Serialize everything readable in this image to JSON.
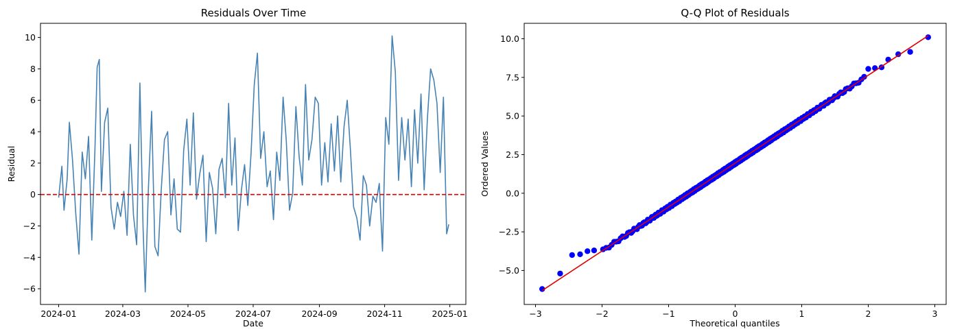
{
  "chart_data": [
    {
      "type": "line",
      "title": "Residuals Over Time",
      "xlabel": "Date",
      "ylabel": "Residual",
      "x_ticks": [
        "2024-01",
        "2024-03",
        "2024-05",
        "2024-07",
        "2024-09",
        "2024-11",
        "2025-01"
      ],
      "y_ticks": [
        "−6",
        "−4",
        "−2",
        "0",
        "2",
        "4",
        "6",
        "8",
        "10"
      ],
      "xlim": [
        "2023-12-15",
        "2025-01-16"
      ],
      "ylim": [
        -7,
        10.9
      ],
      "series": [
        {
          "color": "#4682b4",
          "x": [
            "2024-01-01",
            "2024-01-04",
            "2024-01-06",
            "2024-01-09",
            "2024-01-11",
            "2024-01-14",
            "2024-01-17",
            "2024-01-20",
            "2024-01-23",
            "2024-01-26",
            "2024-01-29",
            "2024-02-01",
            "2024-02-04",
            "2024-02-06",
            "2024-02-08",
            "2024-02-10",
            "2024-02-13",
            "2024-02-16",
            "2024-02-19",
            "2024-02-22",
            "2024-02-25",
            "2024-02-28",
            "2024-03-02",
            "2024-03-05",
            "2024-03-08",
            "2024-03-11",
            "2024-03-14",
            "2024-03-17",
            "2024-03-20",
            "2024-03-22",
            "2024-03-25",
            "2024-03-28",
            "2024-03-31",
            "2024-04-03",
            "2024-04-06",
            "2024-04-09",
            "2024-04-12",
            "2024-04-15",
            "2024-04-18",
            "2024-04-21",
            "2024-04-24",
            "2024-04-27",
            "2024-04-30",
            "2024-05-03",
            "2024-05-06",
            "2024-05-09",
            "2024-05-12",
            "2024-05-15",
            "2024-05-18",
            "2024-05-21",
            "2024-05-24",
            "2024-05-27",
            "2024-05-30",
            "2024-06-02",
            "2024-06-05",
            "2024-06-08",
            "2024-06-11",
            "2024-06-14",
            "2024-06-17",
            "2024-06-20",
            "2024-06-23",
            "2024-06-26",
            "2024-06-29",
            "2024-07-02",
            "2024-07-05",
            "2024-07-08",
            "2024-07-11",
            "2024-07-14",
            "2024-07-17",
            "2024-07-20",
            "2024-07-23",
            "2024-07-26",
            "2024-07-29",
            "2024-08-01",
            "2024-08-04",
            "2024-08-07",
            "2024-08-10",
            "2024-08-13",
            "2024-08-16",
            "2024-08-19",
            "2024-08-22",
            "2024-08-25",
            "2024-08-28",
            "2024-08-31",
            "2024-09-03",
            "2024-09-06",
            "2024-09-09",
            "2024-09-12",
            "2024-09-15",
            "2024-09-18",
            "2024-09-21",
            "2024-09-24",
            "2024-09-27",
            "2024-09-30",
            "2024-10-03",
            "2024-10-06",
            "2024-10-09",
            "2024-10-12",
            "2024-10-15",
            "2024-10-18",
            "2024-10-21",
            "2024-10-24",
            "2024-10-27",
            "2024-10-30",
            "2024-11-02",
            "2024-11-05",
            "2024-11-08",
            "2024-11-11",
            "2024-11-14",
            "2024-11-17",
            "2024-11-20",
            "2024-11-23",
            "2024-11-26",
            "2024-11-29",
            "2024-12-02",
            "2024-12-05",
            "2024-12-08",
            "2024-12-11",
            "2024-12-14",
            "2024-12-17",
            "2024-12-20",
            "2024-12-23",
            "2024-12-26",
            "2024-12-29",
            "2024-12-31"
          ],
          "values": [
            -0.2,
            1.8,
            -1.0,
            1.0,
            4.6,
            2.2,
            -1.2,
            -3.8,
            2.7,
            1.0,
            3.7,
            -2.9,
            2.9,
            8.1,
            8.6,
            0.2,
            4.6,
            5.5,
            -0.8,
            -2.2,
            -0.5,
            -1.4,
            0.2,
            -2.6,
            3.2,
            -1.3,
            -3.2,
            7.1,
            -2.1,
            -6.2,
            0.4,
            5.3,
            -3.3,
            -3.9,
            0.3,
            3.5,
            4.0,
            -1.3,
            1.0,
            -2.2,
            -2.4,
            2.8,
            4.8,
            0.6,
            5.2,
            -0.3,
            1.3,
            2.5,
            -3.0,
            1.4,
            0.4,
            -2.5,
            1.6,
            2.3,
            -0.2,
            5.8,
            0.6,
            3.6,
            -2.3,
            0.3,
            1.9,
            -0.7,
            2.6,
            7.0,
            9.0,
            2.3,
            4.0,
            0.5,
            1.5,
            -1.6,
            2.7,
            0.9,
            6.2,
            3.4,
            -1.0,
            0.1,
            5.6,
            2.4,
            0.6,
            7.0,
            2.2,
            3.5,
            6.2,
            5.8,
            0.6,
            3.3,
            0.8,
            4.5,
            1.5,
            5.0,
            0.8,
            4.3,
            6.0,
            2.8,
            -0.8,
            -1.5,
            -2.9,
            1.2,
            0.6,
            -2.0,
            -0.1,
            -0.5,
            0.7,
            -3.6,
            4.9,
            3.2,
            10.1,
            7.8,
            0.9,
            4.9,
            2.2,
            4.8,
            0.5,
            5.4,
            2.0,
            6.4,
            0.3,
            4.8,
            8.0,
            7.3,
            5.8,
            1.4,
            6.2,
            -2.5,
            -1.9
          ]
        }
      ],
      "reference_line": {
        "y": 0,
        "style": "dashed",
        "color": "#e00000"
      }
    },
    {
      "type": "scatter",
      "title": "Q-Q Plot of Residuals",
      "xlabel": "Theoretical quantiles",
      "ylabel": "Ordered Values",
      "x_ticks": [
        "−3",
        "−2",
        "−1",
        "0",
        "1",
        "2",
        "3"
      ],
      "y_ticks": [
        "−5.0",
        "−2.5",
        "0.0",
        "2.5",
        "5.0",
        "7.5",
        "10.0"
      ],
      "xlim": [
        -3.17,
        3.17
      ],
      "ylim": [
        -7.2,
        11.0
      ],
      "series": [
        {
          "color": "#0000ff",
          "theoretical_quantiles_range": [
            -2.9,
            2.9
          ],
          "notable_points": [
            [
              -2.9,
              -6.2
            ],
            [
              -2.63,
              -5.2
            ],
            [
              -2.45,
              -4.0
            ],
            [
              -2.33,
              -3.95
            ],
            [
              -2.22,
              -3.75
            ],
            [
              -2.12,
              -3.7
            ],
            [
              2.0,
              8.05
            ],
            [
              2.1,
              8.1
            ],
            [
              2.2,
              8.15
            ],
            [
              2.3,
              8.65
            ],
            [
              2.45,
              9.0
            ],
            [
              2.63,
              9.15
            ],
            [
              2.9,
              10.1
            ]
          ]
        }
      ],
      "fit_line": {
        "x": [
          -2.9,
          2.9
        ],
        "y": [
          -6.3,
          10.2
        ],
        "color": "#e00000"
      }
    }
  ]
}
